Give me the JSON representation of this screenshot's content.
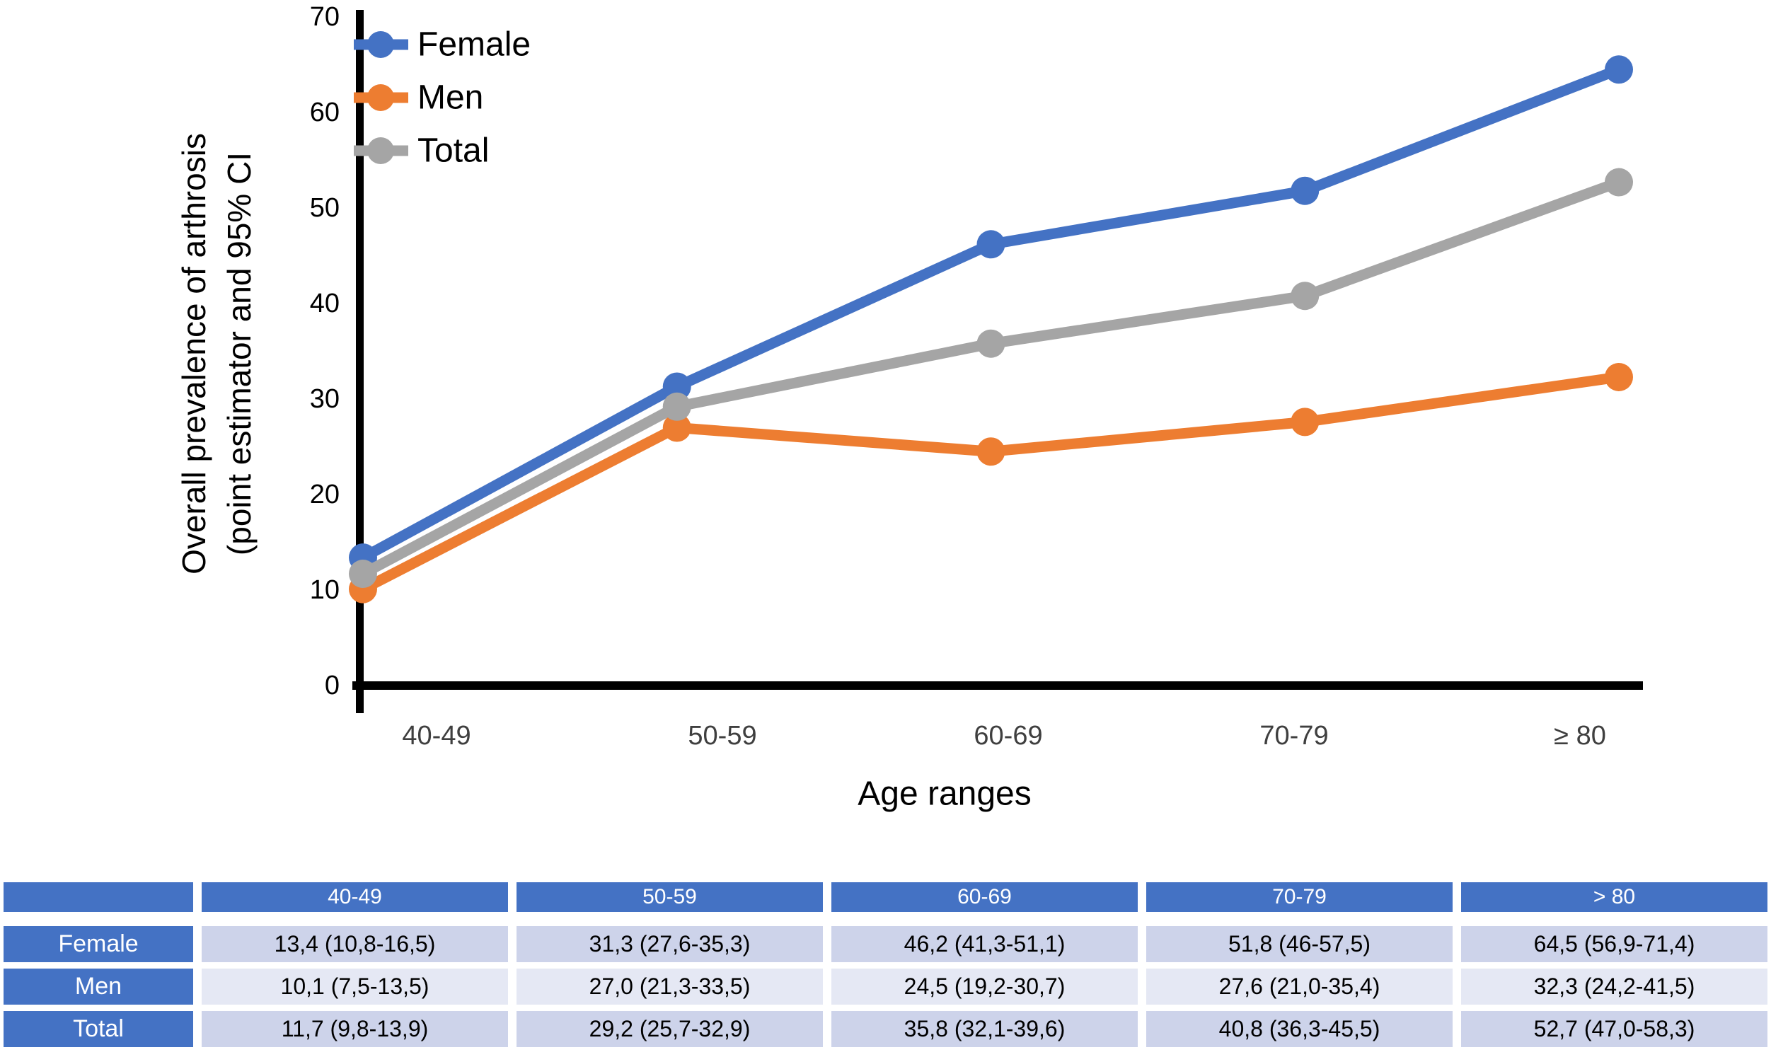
{
  "chart_data": {
    "type": "line",
    "title": "",
    "xlabel": "Age ranges",
    "ylabel_line1": "Overall prevalence of arthrosis",
    "ylabel_line2": "(point estimator and 95% CI",
    "categories": [
      "40-49",
      "50-59",
      "60-69",
      "70-79",
      "≥ 80"
    ],
    "y_ticks": [
      0,
      10,
      20,
      30,
      40,
      50,
      60,
      70
    ],
    "ylim": [
      0,
      70
    ],
    "grid": false,
    "legend_position": "top-left",
    "x_tick_color": "#3F3F3F",
    "y_tick_color": "#000000",
    "axis_color": "#000000",
    "series": [
      {
        "name": "Female",
        "color": "#4472C4",
        "values": [
          13.4,
          31.3,
          46.2,
          51.8,
          64.5
        ]
      },
      {
        "name": "Men",
        "color": "#ED7D31",
        "values": [
          10.1,
          27.0,
          24.5,
          27.6,
          32.3
        ]
      },
      {
        "name": "Total",
        "color": "#A5A5A5",
        "values": [
          11.7,
          29.2,
          35.8,
          40.8,
          52.7
        ]
      }
    ]
  },
  "table": {
    "header": [
      "",
      "40-49",
      "50-59",
      "60-69",
      "70-79",
      "> 80"
    ],
    "rows": [
      {
        "label": "Female",
        "values": [
          "13,4 (10,8-16,5)",
          "31,3 (27,6-35,3)",
          "46,2 (41,3-51,1)",
          "51,8 (46-57,5)",
          "64,5 (56,9-71,4)"
        ]
      },
      {
        "label": "Men",
        "values": [
          "10,1 (7,5-13,5)",
          "27,0 (21,3-33,5)",
          "24,5 (19,2-30,7)",
          "27,6 (21,0-35,4)",
          "32,3 (24,2-41,5)"
        ]
      },
      {
        "label": "Total",
        "values": [
          "11,7 (9,8-13,9)",
          "29,2 (25,7-32,9)",
          "35,8 (32,1-39,6)",
          "40,8 (36,3-45,5)",
          "52,7 (47,0-58,3)"
        ]
      }
    ],
    "colors": {
      "header_bg": "#4472C4",
      "header_text": "#FFFFFF",
      "band_dark": "#CDD3EA",
      "band_light": "#E5E8F4",
      "cell_text": "#000000"
    }
  }
}
